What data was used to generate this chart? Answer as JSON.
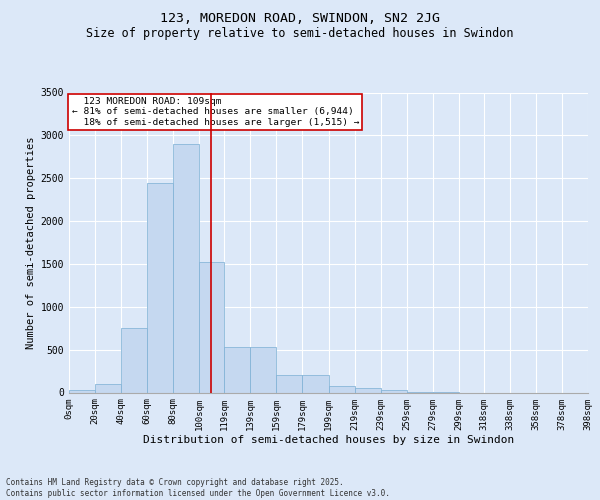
{
  "title": "123, MOREDON ROAD, SWINDON, SN2 2JG",
  "subtitle": "Size of property relative to semi-detached houses in Swindon",
  "xlabel": "Distribution of semi-detached houses by size in Swindon",
  "ylabel": "Number of semi-detached properties",
  "footnote": "Contains HM Land Registry data © Crown copyright and database right 2025.\nContains public sector information licensed under the Open Government Licence v3.0.",
  "bar_left_edges": [
    0,
    20,
    40,
    60,
    80,
    100,
    119,
    139,
    159,
    179,
    199,
    219,
    239,
    259,
    279,
    299,
    318,
    338,
    358,
    378
  ],
  "bar_widths": [
    20,
    20,
    20,
    20,
    20,
    19,
    20,
    20,
    20,
    20,
    20,
    20,
    20,
    20,
    20,
    19,
    20,
    20,
    20,
    20
  ],
  "bar_heights": [
    30,
    100,
    750,
    2450,
    2900,
    1520,
    530,
    530,
    210,
    200,
    80,
    55,
    35,
    5,
    5,
    0,
    0,
    0,
    0,
    0
  ],
  "bar_color": "#c5d8f0",
  "bar_edge_color": "#7bafd4",
  "tick_labels": [
    "0sqm",
    "20sqm",
    "40sqm",
    "60sqm",
    "80sqm",
    "100sqm",
    "119sqm",
    "139sqm",
    "159sqm",
    "179sqm",
    "199sqm",
    "219sqm",
    "239sqm",
    "259sqm",
    "279sqm",
    "299sqm",
    "318sqm",
    "338sqm",
    "358sqm",
    "378sqm",
    "398sqm"
  ],
  "property_size": 109,
  "property_label": "123 MOREDON ROAD: 109sqm",
  "pct_smaller": 81,
  "n_smaller": 6944,
  "pct_larger": 18,
  "n_larger": 1515,
  "vline_color": "#cc0000",
  "ylim": [
    0,
    3500
  ],
  "yticks": [
    0,
    500,
    1000,
    1500,
    2000,
    2500,
    3000,
    3500
  ],
  "plot_bg": "#dce8f8",
  "fig_bg": "#dce8f8",
  "grid_color": "#ffffff",
  "title_fontsize": 9.5,
  "subtitle_fontsize": 8.5,
  "xlabel_fontsize": 8,
  "ylabel_fontsize": 7.5,
  "tick_fontsize": 6.5,
  "annot_fontsize": 6.8,
  "footnote_fontsize": 5.5
}
